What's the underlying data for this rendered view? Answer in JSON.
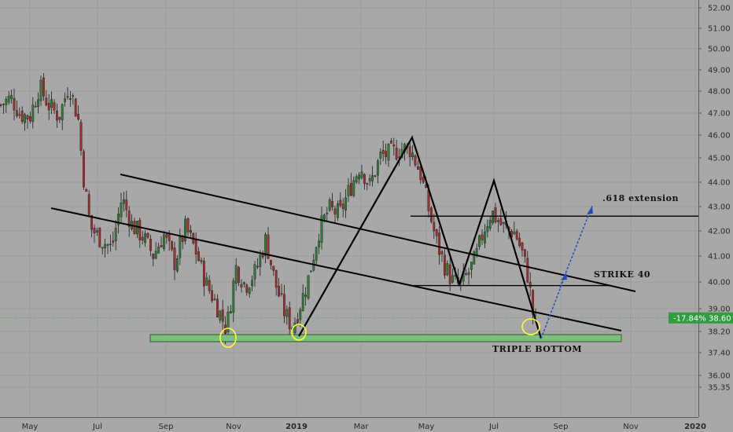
{
  "chart_data": {
    "type": "candlestick",
    "instrument_change_label": "-17.84%",
    "last_price_label": "38.60",
    "last_price": 38.6,
    "ylim": [
      35.3,
      52.2
    ],
    "y_ticks": [
      "52.00",
      "51.00",
      "50.00",
      "49.00",
      "48.00",
      "47.00",
      "46.00",
      "45.00",
      "44.00",
      "43.00",
      "42.00",
      "41.00",
      "40.00",
      "39.00",
      "38.20",
      "37.40",
      "36.00",
      "35.35"
    ],
    "x_ticks": [
      {
        "label": "May",
        "bold": false
      },
      {
        "label": "Jul",
        "bold": false
      },
      {
        "label": "Sep",
        "bold": false
      },
      {
        "label": "Nov",
        "bold": false
      },
      {
        "label": "2019",
        "bold": true
      },
      {
        "label": "Mar",
        "bold": false
      },
      {
        "label": "May",
        "bold": false
      },
      {
        "label": "Jul",
        "bold": false
      },
      {
        "label": "Sep",
        "bold": false
      },
      {
        "label": "Nov",
        "bold": false
      },
      {
        "label": "2020",
        "bold": true
      }
    ],
    "annotations": {
      "extension_label": ".618 extension",
      "extension_level": 43.0,
      "strike_label": "STRIKE 40",
      "strike_level": 40.0,
      "triple_bottom_label": "TRIPLE BOTTOM",
      "support_zone": [
        37.9,
        38.05
      ]
    },
    "price_path": [
      [
        0,
        47.8
      ],
      [
        14,
        48.1
      ],
      [
        26,
        47.4
      ],
      [
        38,
        47.3
      ],
      [
        50,
        48.6
      ],
      [
        62,
        47.8
      ],
      [
        75,
        47.3
      ],
      [
        88,
        48.7
      ],
      [
        100,
        47.1
      ],
      [
        105,
        45.0
      ],
      [
        115,
        42.5
      ],
      [
        128,
        42.0
      ],
      [
        142,
        41.6
      ],
      [
        155,
        43.8
      ],
      [
        168,
        42.6
      ],
      [
        182,
        42.1
      ],
      [
        195,
        41.3
      ],
      [
        208,
        42.2
      ],
      [
        222,
        41.0
      ],
      [
        236,
        42.5
      ],
      [
        250,
        41.4
      ],
      [
        262,
        40.1
      ],
      [
        275,
        39.2
      ],
      [
        288,
        38.1
      ],
      [
        300,
        40.8
      ],
      [
        312,
        40.0
      ],
      [
        325,
        40.6
      ],
      [
        338,
        42.0
      ],
      [
        350,
        40.1
      ],
      [
        362,
        38.8
      ],
      [
        372,
        38.2
      ],
      [
        382,
        39.2
      ],
      [
        392,
        40.3
      ],
      [
        405,
        42.3
      ],
      [
        418,
        43.3
      ],
      [
        432,
        43.1
      ],
      [
        445,
        44.2
      ],
      [
        458,
        45.2
      ],
      [
        470,
        44.3
      ],
      [
        484,
        45.6
      ],
      [
        496,
        45.7
      ],
      [
        510,
        45.9
      ],
      [
        522,
        45.9
      ],
      [
        535,
        44.8
      ],
      [
        545,
        43.3
      ],
      [
        555,
        41.9
      ],
      [
        565,
        40.9
      ],
      [
        575,
        40.2
      ],
      [
        585,
        40.0
      ],
      [
        595,
        40.5
      ],
      [
        605,
        41.2
      ],
      [
        615,
        42.4
      ],
      [
        625,
        43.2
      ],
      [
        635,
        42.7
      ],
      [
        645,
        42.4
      ],
      [
        655,
        42.3
      ],
      [
        665,
        41.3
      ],
      [
        672,
        40.3
      ],
      [
        678,
        38.7
      ],
      [
        684,
        38.3
      ]
    ]
  }
}
